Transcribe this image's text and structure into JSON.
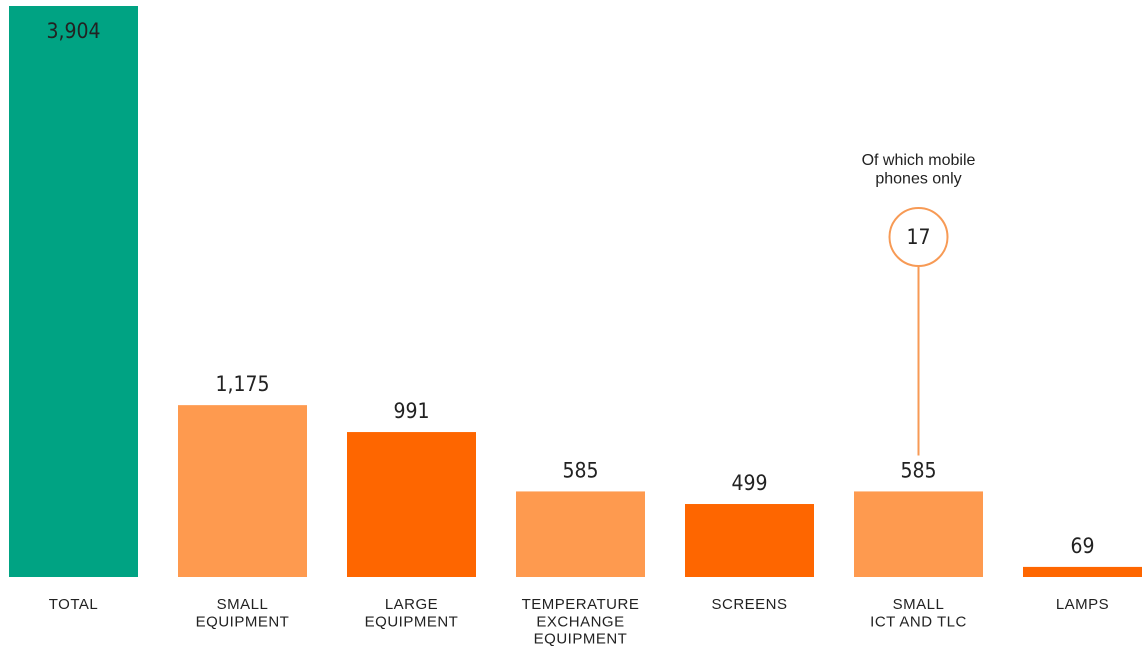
{
  "chart_data": {
    "type": "bar",
    "categories": [
      "TOTAL",
      "SMALL\nEQUIPMENT",
      "LARGE\nEQUIPMENT",
      "TEMPERATURE\nEXCHANGE\nEQUIPMENT",
      "SCREENS",
      "SMALL\nICT AND TLC",
      "LAMPS"
    ],
    "values": [
      3904,
      1175,
      991,
      585,
      499,
      585,
      69
    ],
    "value_labels": [
      "3,904",
      "1,175",
      "991",
      "585",
      "499",
      "585",
      "69"
    ],
    "colors": [
      "#00a383",
      "#fe9a4f",
      "#fe6600",
      "#fe9a4f",
      "#fe6600",
      "#fe9a4f",
      "#fe6600"
    ],
    "annotation": {
      "text": "Of which mobile\nphones only",
      "value": 17,
      "color": "#f79a55"
    }
  }
}
